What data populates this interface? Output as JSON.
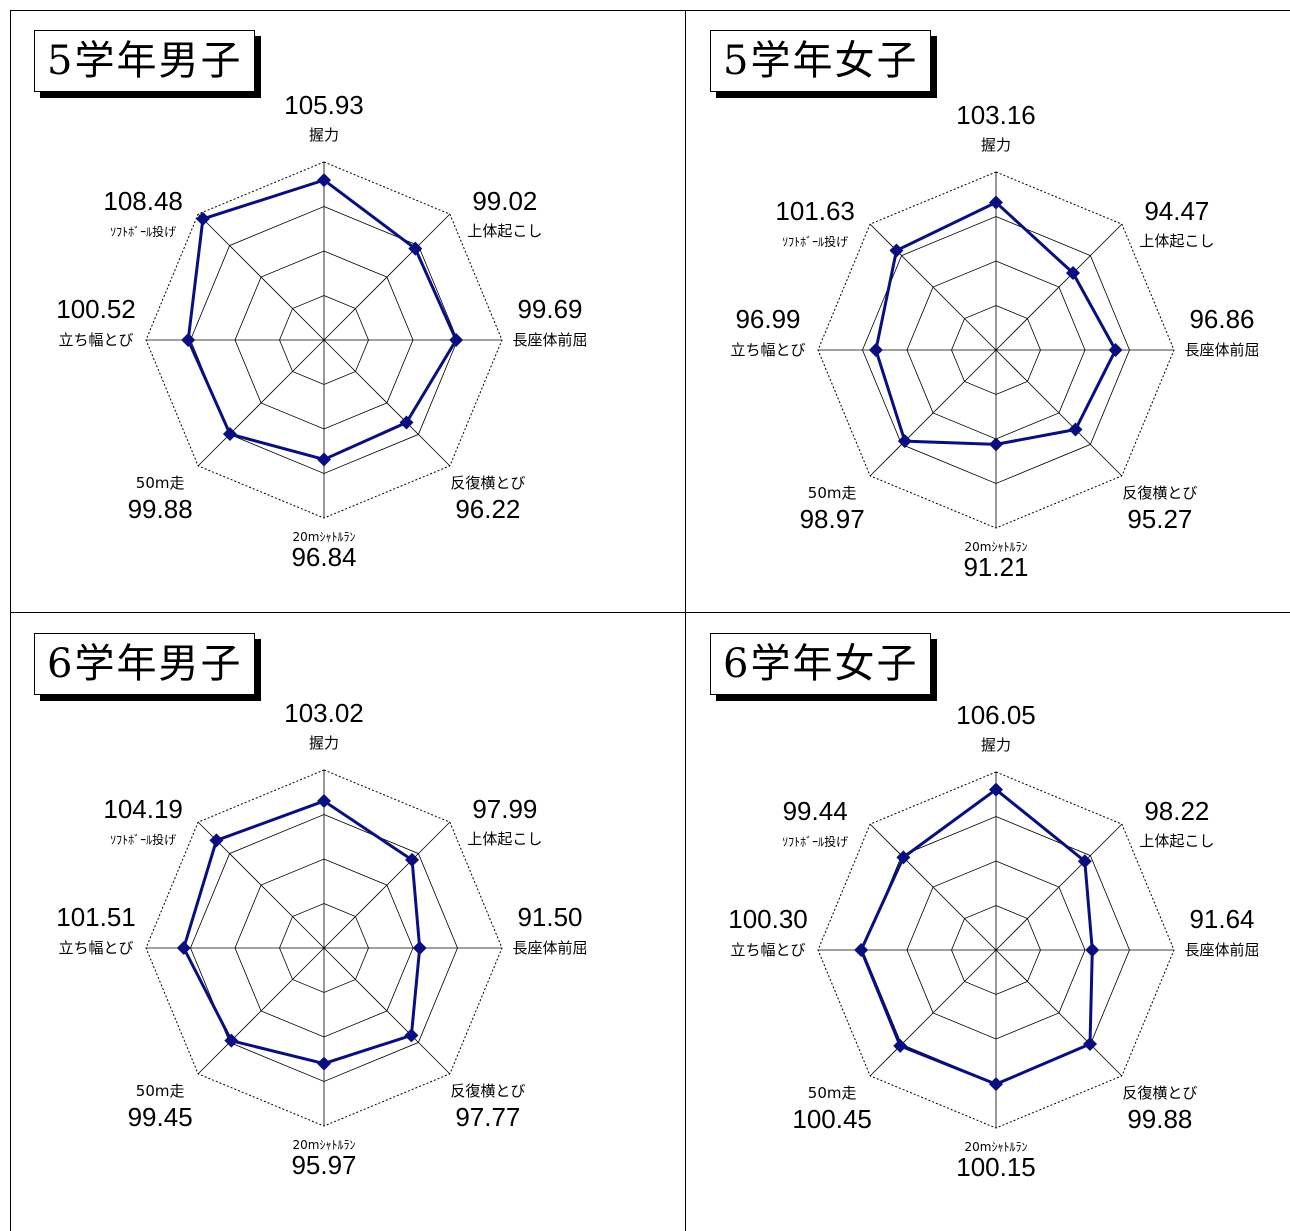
{
  "axis_labels": [
    "握力",
    "上体起こし",
    "長座体前屈",
    "反復横とび",
    "20mｼｬﾄﾙﾗﾝ",
    "50m走",
    "立ち幅とび",
    "ｿﾌﾄﾎﾞｰﾙ投げ"
  ],
  "colors": {
    "series": "#0a0f80",
    "grid": "#000000"
  },
  "chart_data": [
    {
      "type": "radar",
      "title": "5学年男子",
      "categories": [
        "握力",
        "上体起こし",
        "長座体前屈",
        "反復横とび",
        "20mｼｬﾄﾙﾗﾝ",
        "50m走",
        "立ち幅とび",
        "ｿﾌﾄﾎﾞｰﾙ投げ"
      ],
      "value_labels": [
        "105.93",
        "99.02",
        "99.69",
        "96.22",
        "96.84",
        "99.88",
        "100.52",
        "108.48"
      ],
      "values": [
        105.93,
        99.02,
        99.69,
        96.22,
        96.84,
        99.88,
        100.52,
        108.48
      ],
      "grid": true
    },
    {
      "type": "radar",
      "title": "5学年女子",
      "categories": [
        "握力",
        "上体起こし",
        "長座体前屈",
        "反復横とび",
        "20mｼｬﾄﾙﾗﾝ",
        "50m走",
        "立ち幅とび",
        "ｿﾌﾄﾎﾞｰﾙ投げ"
      ],
      "value_labels": [
        "103.16",
        "94.47",
        "96.86",
        "95.27",
        "91.21",
        "98.97",
        "96.99",
        "101.63"
      ],
      "values": [
        103.16,
        94.47,
        96.86,
        95.27,
        91.21,
        98.97,
        96.99,
        101.63
      ],
      "grid": true
    },
    {
      "type": "radar",
      "title": "6学年男子",
      "categories": [
        "握力",
        "上体起こし",
        "長座体前屈",
        "反復横とび",
        "20mｼｬﾄﾙﾗﾝ",
        "50m走",
        "立ち幅とび",
        "ｿﾌﾄﾎﾞｰﾙ投げ"
      ],
      "value_labels": [
        "103.02",
        "97.99",
        "91.50",
        "97.77",
        "95.97",
        "99.45",
        "101.51",
        "104.19"
      ],
      "values": [
        103.02,
        97.99,
        91.5,
        97.77,
        95.97,
        99.45,
        101.51,
        104.19
      ],
      "grid": true
    },
    {
      "type": "radar",
      "title": "6学年女子",
      "categories": [
        "握力",
        "上体起こし",
        "長座体前屈",
        "反復横とび",
        "20mｼｬﾄﾙﾗﾝ",
        "50m走",
        "立ち幅とび",
        "ｿﾌﾄﾎﾞｰﾙ投げ"
      ],
      "value_labels": [
        "106.05",
        "98.22",
        "91.64",
        "99.88",
        "100.15",
        "100.45",
        "100.30",
        "99.44"
      ],
      "values": [
        106.05,
        98.22,
        91.64,
        99.88,
        100.15,
        100.45,
        100.3,
        99.44
      ],
      "grid": true
    }
  ]
}
